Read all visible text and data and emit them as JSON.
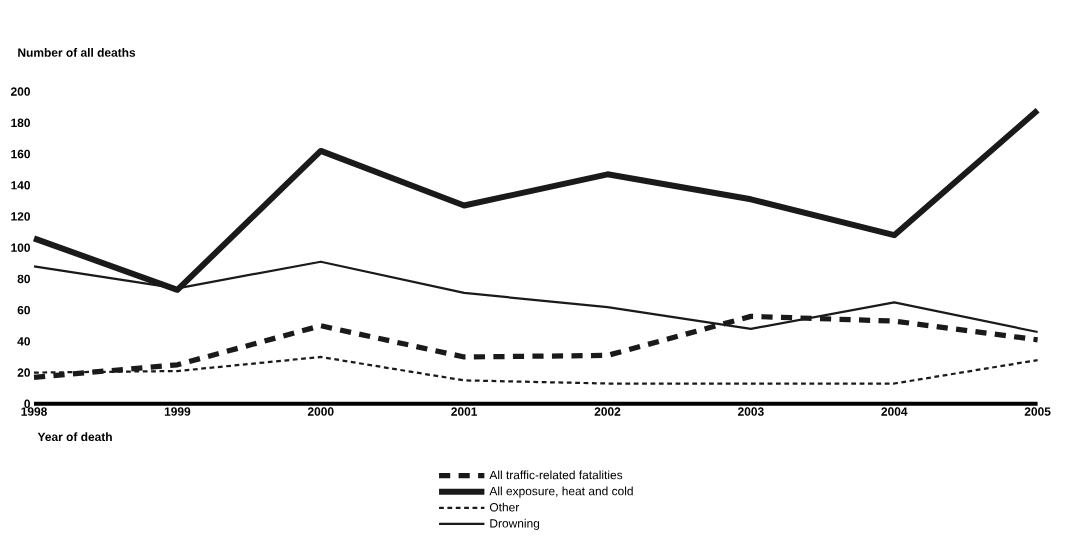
{
  "chart_data": {
    "type": "line",
    "ylabel": "Number of all deaths",
    "xlabel": "Year of death",
    "categories": [
      "1998",
      "1999",
      "2000",
      "2001",
      "2002",
      "2003",
      "2004",
      "2005"
    ],
    "series": [
      {
        "name": "All traffic-related fatalities",
        "color": "#1a1a1a",
        "line_style": "dashed",
        "values": [
          17,
          25,
          50,
          30,
          31,
          56,
          53,
          41
        ]
      },
      {
        "name": "All exposure, heat and cold",
        "color": "#1a1a1a",
        "line_style": "solid",
        "values": [
          106,
          73,
          162,
          127,
          147,
          131,
          108,
          188
        ]
      },
      {
        "name": "Other",
        "color": "#1a1a1a",
        "line_style": "dashed",
        "values": [
          20,
          21,
          30,
          15,
          13,
          13,
          13,
          28
        ]
      },
      {
        "name": "Drowning",
        "color": "#1a1a1a",
        "line_style": "solid",
        "values": [
          88,
          74,
          91,
          71,
          62,
          48,
          65,
          46
        ]
      }
    ],
    "ylim": [
      0,
      200
    ],
    "yticks": [
      0,
      20,
      40,
      60,
      80,
      100,
      120,
      140,
      160,
      180,
      200
    ],
    "grid": false,
    "legend": "bottom",
    "marker": "none"
  }
}
